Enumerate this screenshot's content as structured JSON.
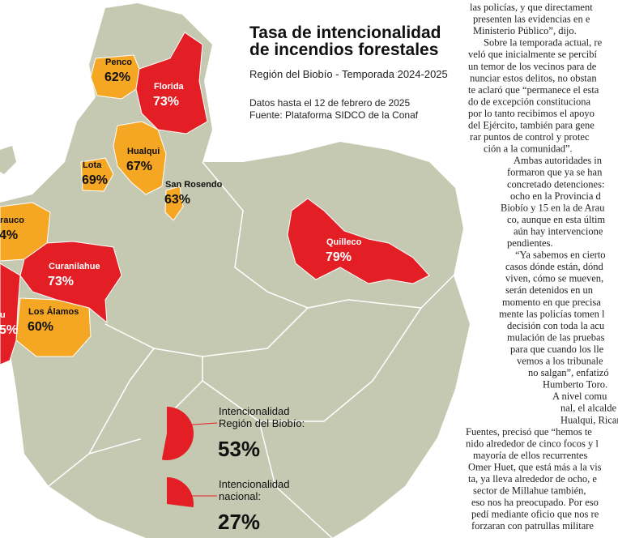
{
  "infographic": {
    "title_lines": [
      "Tasa de intencionalidad",
      "de incendios forestales"
    ],
    "subtitle": "Región del Biobío - Temporada 2024-2025",
    "notes": [
      "Datos hasta el 12 de febrero de 2025",
      "Fuente: Plataforma SIDCO de la Conaf"
    ],
    "communes": [
      {
        "name": "Penco",
        "label": "62%"
      },
      {
        "name": "Florida",
        "label": "73%"
      },
      {
        "name": "Hualqui",
        "label": "67%"
      },
      {
        "name": "Lota",
        "label": "69%"
      },
      {
        "name": "San Rosendo",
        "label": "63%"
      },
      {
        "name": "rauco",
        "label": "4%"
      },
      {
        "name": "Curanilahue",
        "label": "73%"
      },
      {
        "name": "Los Álamos",
        "label": "60%"
      },
      {
        "name": "u",
        "label": "5%"
      },
      {
        "name": "Quilleco",
        "label": "79%"
      }
    ],
    "pies": [
      {
        "label_lines": [
          "Intencionalidad",
          "Región del Biobío:"
        ],
        "value": 53,
        "value_label": "53%"
      },
      {
        "label_lines": [
          "Intencionalidad",
          "nacional:"
        ],
        "value": 27,
        "value_label": "27%"
      }
    ]
  },
  "article": {
    "lines": [
      "las policías, y que directament",
      "presenten las evidencias en e",
      "Ministerio Público”, dijo.",
      "Sobre la temporada actual, re",
      "veló que inicialmente se percibí",
      "un temor de los vecinos para de",
      "nunciar estos delitos, no obstan",
      "te aclaró que “permanece el esta",
      "do de excepción constituciona",
      "por lo tanto recibimos el apoyo",
      "del Ejército, también para gene",
      "rar puntos de control y protec",
      "ción a la comunidad”.",
      "Ambas autoridades in",
      "formaron que ya se han",
      "concretado detenciones:",
      "ocho en la Provincia d",
      "Biobío y 15 en la de Arau",
      "co, aunque en esta últim",
      "aún hay intervencione",
      "pendientes.",
      "“Ya sabemos en cierto",
      "casos dónde están, dónd",
      "viven, cómo se mueven, ",
      "serán detenidos en un",
      "momento en que precisa",
      "mente las policías tomen l",
      "decisión con toda la acu",
      "mulación de las pruebas",
      "para que cuando los lle",
      "vemos a los tribunale",
      "no salgan”, enfatizó",
      "Humberto Toro.",
      "A nivel comu",
      "nal, el alcalde d",
      "Hualqui, Ricardo",
      "Fuentes, precisó que “hemos te",
      "nido alrededor de cinco focos y l",
      "mayoría de ellos recurrentes",
      "Omer Huet, que está más a la vis",
      "ta, ya lleva alrededor de ocho, e",
      "sector de Millahue también, ",
      "eso nos ha preocupado. Por eso",
      "pedí mediante oficio que nos re",
      "forzaran con patrullas militare"
    ]
  }
}
